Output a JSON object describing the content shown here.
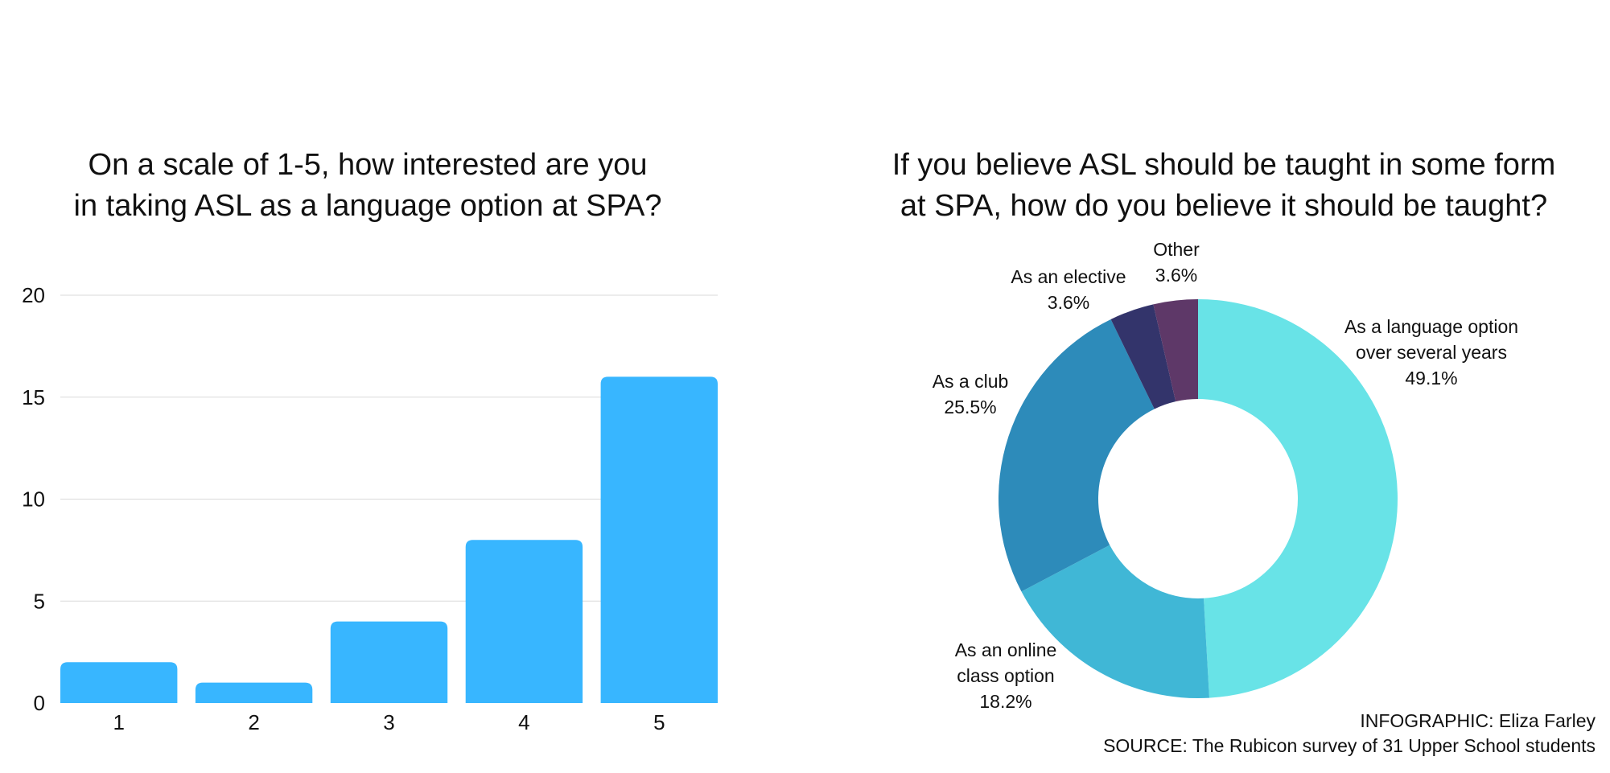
{
  "chart_data": [
    {
      "type": "bar",
      "title_lines": [
        "On a scale of 1-5, how interested are you",
        "in taking ASL as a language option at SPA?"
      ],
      "categories": [
        "1",
        "2",
        "3",
        "4",
        "5"
      ],
      "values": [
        2,
        1,
        4,
        8,
        16
      ],
      "ylim": [
        0,
        20
      ],
      "yticks": [
        "0",
        "5",
        "10",
        "15",
        "20"
      ],
      "grid": true,
      "bar_color": "#38b6ff",
      "grid_color": "#d9d9d9"
    },
    {
      "type": "pie",
      "donut": true,
      "title_lines": [
        "If you believe ASL should be taught in some form",
        "at SPA, how do you believe it should be taught?"
      ],
      "slices": [
        {
          "label_lines": [
            "As a language option",
            "over several years"
          ],
          "percent_label": "49.1%",
          "value": 49.1,
          "color": "#68e3e7"
        },
        {
          "label_lines": [
            "As an online",
            "class option"
          ],
          "percent_label": "18.2%",
          "value": 18.2,
          "color": "#40b7d6"
        },
        {
          "label_lines": [
            "As a club"
          ],
          "percent_label": "25.5%",
          "value": 25.5,
          "color": "#2d8bba"
        },
        {
          "label_lines": [
            "As an elective"
          ],
          "percent_label": "3.6%",
          "value": 3.6,
          "color": "#33346b"
        },
        {
          "label_lines": [
            "Other"
          ],
          "percent_label": "3.6%",
          "value": 3.6,
          "color": "#5e3868"
        }
      ]
    }
  ],
  "credits": {
    "infographic": "INFOGRAPHIC: Eliza Farley",
    "source": "SOURCE: The Rubicon survey of 31 Upper School students"
  }
}
